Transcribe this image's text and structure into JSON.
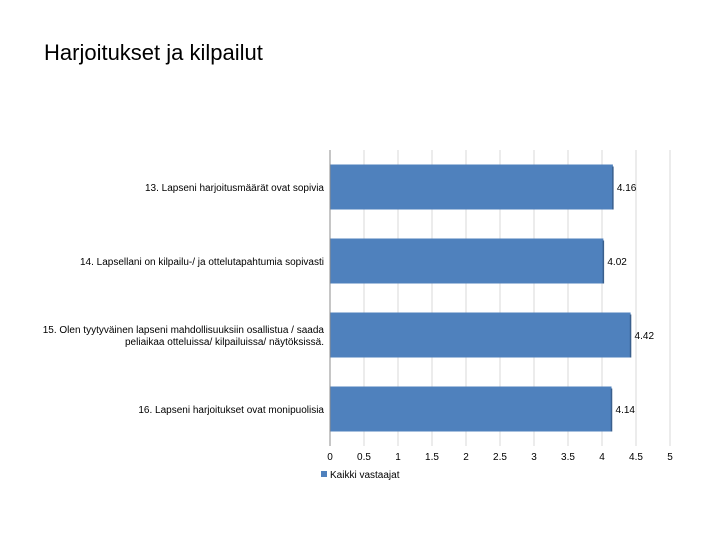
{
  "page": {
    "title": "Harjoitukset ja kilpailut"
  },
  "chart_data": {
    "type": "bar",
    "orientation": "horizontal",
    "categories": [
      [
        "13. Lapseni harjoitusmäärät ovat sopivia"
      ],
      [
        "14. Lapsellani on kilpailu-/ ja ottelutapahtumia sopivasti"
      ],
      [
        "15. Olen tyytyväinen lapseni mahdollisuuksiin osallistua / saada",
        "peliaikaa otteluissa/ kilpailuissa/ näytöksissä."
      ],
      [
        "16. Lapseni harjoitukset ovat monipuolisia"
      ]
    ],
    "series": [
      {
        "name": "Kaikki vastaajat",
        "values": [
          4.16,
          4.02,
          4.42,
          4.14
        ],
        "color": "#4f81bd"
      }
    ],
    "data_labels": [
      "4.16",
      "4.02",
      "4.42",
      "4.14"
    ],
    "xlim": [
      0,
      5
    ],
    "xticks": [
      "0",
      "0.5",
      "1",
      "1.5",
      "2",
      "2.5",
      "3",
      "3.5",
      "4",
      "4.5",
      "5"
    ],
    "grid": true,
    "legend": "bottom-left"
  }
}
